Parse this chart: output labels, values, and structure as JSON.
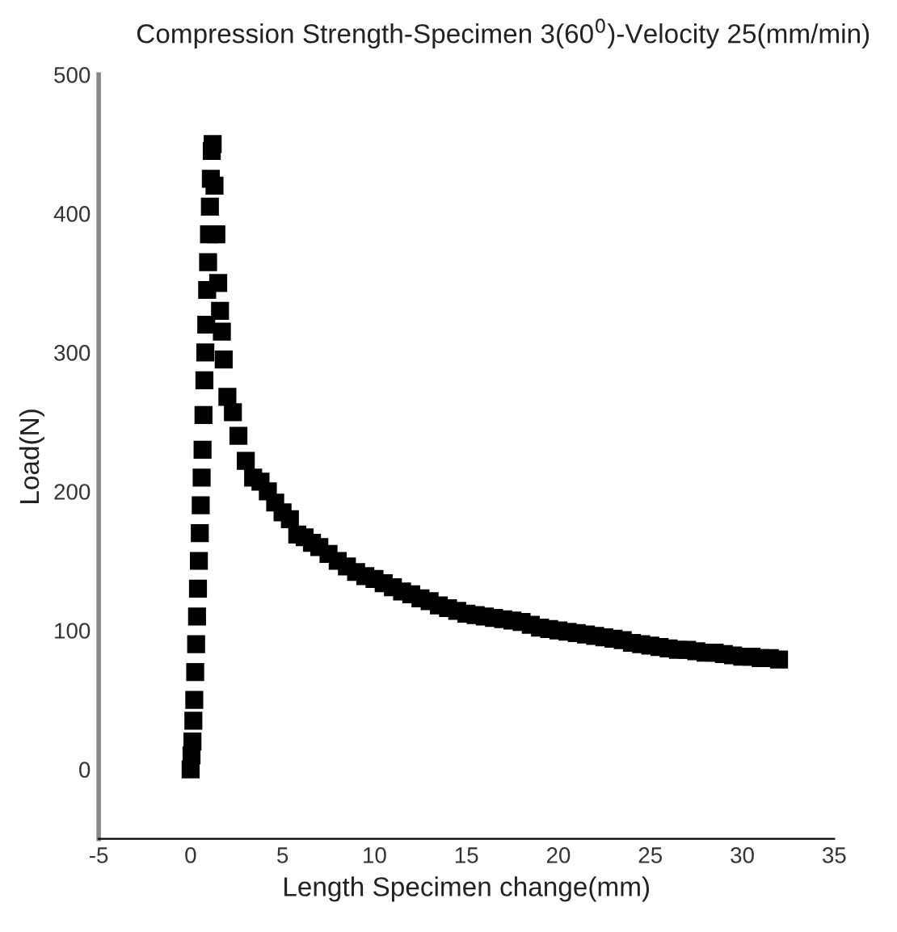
{
  "chart_data": {
    "type": "scatter",
    "title": "Compression Strength-Specimen 3(60$^{0}$)-Velocity 25(mm/min)",
    "xlabel": "Length Specimen change(mm)",
    "ylabel": "Load(N)",
    "xlim": [
      -5,
      35
    ],
    "xticks": [
      -5,
      0,
      5,
      10,
      15,
      20,
      25,
      30,
      35
    ],
    "ylim": [
      -50,
      500
    ],
    "yticks": [
      0,
      100,
      200,
      300,
      400,
      500
    ],
    "grid": false,
    "legend": false,
    "marker": "square",
    "series": [
      {
        "color": "#000000",
        "x": [
          0,
          0.05,
          0.1,
          0.15,
          0.2,
          0.25,
          0.3,
          0.35,
          0.4,
          0.45,
          0.5,
          0.55,
          0.6,
          0.65,
          0.7,
          0.75,
          0.8,
          0.85,
          0.9,
          0.95,
          1.0,
          1.05,
          1.1,
          1.15,
          1.2,
          1.3,
          1.4,
          1.5,
          1.6,
          1.7,
          1.8,
          2.0,
          2.3,
          2.6,
          3.0,
          3.4,
          3.8,
          4.2,
          4.6,
          5.0,
          5.4,
          5.8,
          6.2,
          6.6,
          7.0,
          7.5,
          8.0,
          8.5,
          9.0,
          9.5,
          10,
          10.5,
          11,
          11.5,
          12,
          12.5,
          13,
          13.5,
          14,
          14.5,
          15,
          15.5,
          16,
          16.5,
          17,
          17.5,
          18,
          18.5,
          19,
          19.5,
          20,
          20.5,
          21,
          21.5,
          22,
          22.5,
          23,
          23.5,
          24,
          24.5,
          25,
          25.5,
          26,
          26.5,
          27,
          27.5,
          28,
          28.5,
          29,
          29.5,
          30,
          30.5,
          31,
          31.5,
          32
        ],
        "values": [
          0,
          10,
          20,
          35,
          50,
          70,
          90,
          110,
          130,
          150,
          170,
          190,
          210,
          230,
          255,
          280,
          300,
          320,
          345,
          365,
          385,
          405,
          425,
          445,
          450,
          420,
          385,
          350,
          330,
          315,
          295,
          268,
          257,
          240,
          222,
          210,
          207,
          200,
          192,
          185,
          180,
          169,
          167,
          163,
          160,
          155,
          150,
          146,
          142,
          139,
          137,
          134,
          131,
          128,
          126,
          123,
          121,
          118,
          116,
          114,
          112,
          111,
          110,
          109,
          108,
          107,
          106,
          104,
          102,
          101,
          100,
          99,
          98,
          97,
          96,
          95,
          94,
          93,
          91,
          90,
          89,
          88,
          87,
          86,
          86,
          85,
          84,
          84,
          83,
          82,
          81,
          81,
          80,
          80,
          79
        ]
      }
    ]
  }
}
